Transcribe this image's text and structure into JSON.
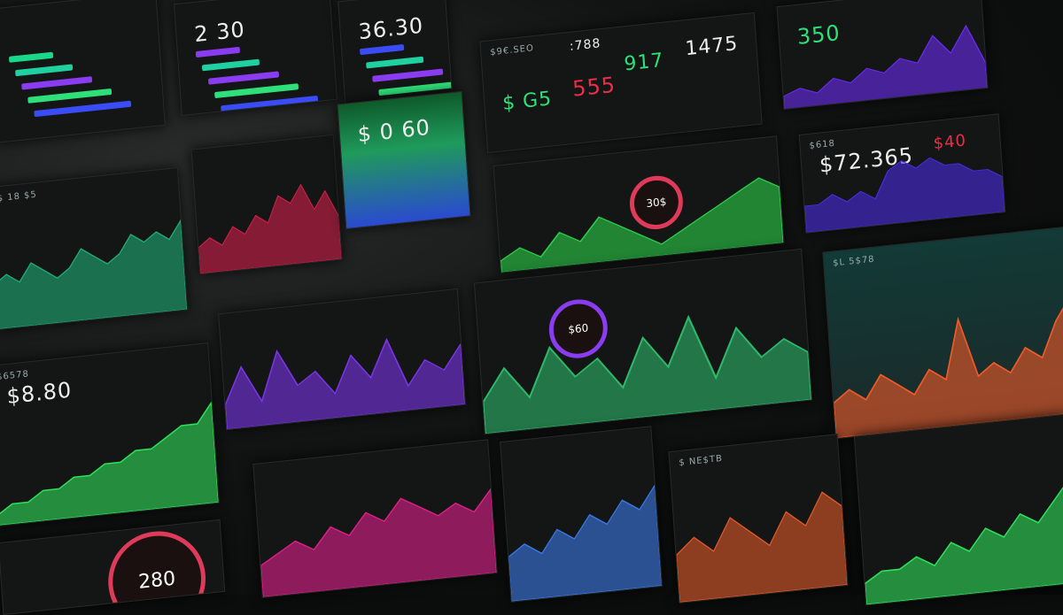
{
  "panels": [
    {
      "id": "p1",
      "label": "",
      "value": "",
      "color": "#19d889",
      "values": []
    },
    {
      "id": "p2",
      "label": "",
      "value": "2 30",
      "color": "#8a3cf0",
      "values": []
    },
    {
      "id": "p3",
      "label": "",
      "value": "36.30",
      "color": "#3a4cf5",
      "values": []
    },
    {
      "id": "p4",
      "label": "$9€.SEO",
      "value": "555",
      "values2": [
        "$ G5",
        "917",
        "1475",
        ":788"
      ],
      "color": "#ee2b48",
      "values": []
    },
    {
      "id": "p5",
      "label": "",
      "value": "350",
      "color": "#6a2cf0",
      "values": [
        2,
        3,
        2,
        4,
        3,
        5,
        4,
        6,
        5,
        9,
        6,
        10,
        4
      ]
    },
    {
      "id": "p6",
      "label": "$ 18 $5",
      "value": "",
      "color": "#1fae78",
      "values": [
        5,
        6,
        5,
        7,
        6,
        5,
        6,
        8,
        7,
        6,
        7,
        9,
        8,
        9,
        8,
        10
      ]
    },
    {
      "id": "p7",
      "label": "",
      "value": "",
      "color": "#d0204a",
      "values": [
        3,
        4,
        3,
        5,
        4,
        6,
        5,
        8,
        7,
        9,
        6,
        8,
        5
      ]
    },
    {
      "id": "p8",
      "label": "",
      "value": "$ 0 60",
      "color": "#1fd05c",
      "values": []
    },
    {
      "id": "p9",
      "label": "",
      "value": "30$",
      "color": "#2ad04a",
      "values": [
        1,
        2,
        1,
        3,
        2,
        4,
        3,
        2,
        1,
        2,
        3,
        4,
        5,
        6,
        5
      ]
    },
    {
      "id": "p10",
      "label": "$618",
      "value": "$72.365",
      "extra": "$40",
      "color": "#4a2ce0",
      "values": [
        3,
        3,
        4,
        3,
        4,
        3,
        6,
        7,
        6,
        7,
        6,
        6,
        5,
        5,
        4
      ]
    },
    {
      "id": "p11",
      "label": "$L 5$78",
      "value": "",
      "color": "#f05a28",
      "values": [
        3,
        4,
        3,
        5,
        4,
        3,
        5,
        4,
        9,
        4,
        5,
        4,
        6,
        5,
        8,
        10
      ]
    },
    {
      "id": "p12",
      "label": "$6578",
      "value": "$8.80",
      "color": "#2ee05a",
      "values": [
        1,
        2,
        2,
        3,
        3,
        4,
        4,
        5,
        5,
        6,
        6,
        7,
        8,
        8,
        10
      ]
    },
    {
      "id": "p13",
      "label": "",
      "value": "",
      "color": "#7a35e8",
      "values": [
        2,
        5,
        2,
        6,
        3,
        4,
        2,
        5,
        3,
        6,
        2,
        4,
        3,
        5
      ]
    },
    {
      "id": "p14",
      "label": "",
      "value": "$60",
      "color": "#2db86a",
      "values": [
        2,
        4,
        2,
        5,
        3,
        4,
        2,
        5,
        3,
        6,
        2,
        5,
        3,
        4,
        3
      ]
    },
    {
      "id": "p15",
      "label": "",
      "value": "",
      "color": "#e0208a",
      "values": [
        3,
        4,
        5,
        4,
        6,
        5,
        7,
        6,
        8,
        7,
        6,
        7,
        6,
        8
      ]
    },
    {
      "id": "p16",
      "label": "",
      "value": "",
      "color": "#3a7ae8",
      "values": [
        4,
        5,
        4,
        6,
        5,
        7,
        6,
        8,
        7,
        9
      ]
    },
    {
      "id": "p17",
      "label": "$ NE$TB",
      "value": "",
      "color": "#e05a28",
      "values": [
        3,
        4,
        3,
        5,
        4,
        3,
        5,
        4,
        6,
        5
      ]
    },
    {
      "id": "p18",
      "label": "",
      "value": "",
      "color": "#2ee05a",
      "values": [
        2,
        3,
        3,
        4,
        3,
        5,
        4,
        6,
        5,
        7,
        6,
        8,
        10
      ]
    },
    {
      "id": "p19",
      "label": "",
      "value": "280",
      "color": "#e03a5a",
      "values": []
    }
  ]
}
